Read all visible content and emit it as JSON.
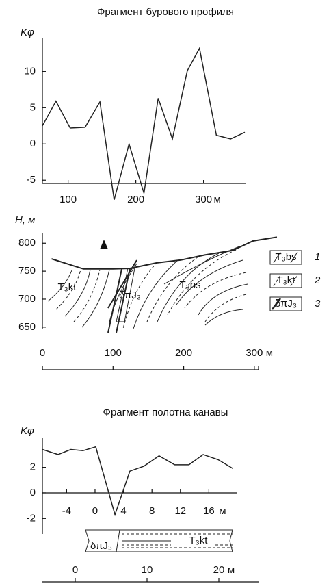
{
  "chart_data": [
    {
      "type": "line",
      "title": "Фрагмент бурового профиля",
      "ylabel": "Kφ",
      "x_unit": "м",
      "x": [
        62,
        82,
        103,
        125,
        147,
        168,
        190,
        212,
        233,
        254,
        276,
        294,
        319,
        340,
        361
      ],
      "values": [
        2.5,
        5.9,
        2.2,
        2.3,
        5.8,
        -7.7,
        0,
        -6.8,
        6.3,
        0.7,
        10.1,
        13.2,
        1.2,
        0.7,
        1.6
      ],
      "color": "#222",
      "xlim": [
        62,
        362
      ],
      "ylim": [
        -8,
        14
      ],
      "xticks": [
        100,
        200,
        300
      ],
      "yticks": [
        -5,
        0,
        5,
        10
      ]
    },
    {
      "type": "line",
      "ylabel": "H, м",
      "x_unit": "м",
      "x": [
        13,
        58,
        100,
        124,
        162,
        196,
        230,
        269,
        298,
        332
      ],
      "values": [
        772,
        754,
        754,
        755,
        765,
        770,
        779,
        787,
        804,
        811
      ],
      "color": "#222",
      "xlim": [
        0,
        335
      ],
      "ylim": [
        640,
        815
      ],
      "xticks": [
        0,
        100,
        200,
        300
      ],
      "yticks": [
        650,
        700,
        750,
        800
      ],
      "section_labels": [
        "T₃kt",
        "δπJ₃",
        "T₃bs"
      ],
      "legend": [
        {
          "label": "T₃bs",
          "num": "1"
        },
        {
          "label": "T₃kt",
          "num": "2"
        },
        {
          "label": "δπJ₃",
          "num": "3"
        }
      ]
    },
    {
      "type": "line",
      "title": "Фрагмент полотна канавы",
      "ylabel": "Kφ",
      "x_unit": "м",
      "x": [
        -7.4,
        -5.2,
        -3.4,
        -1.7,
        0.1,
        2.8,
        4.9,
        6.9,
        9.0,
        11.2,
        13.2,
        15.2,
        17.3,
        19.4
      ],
      "values": [
        3.4,
        3.0,
        3.4,
        3.3,
        3.6,
        -1.7,
        1.7,
        2.1,
        2.9,
        2.2,
        2.2,
        3.0,
        2.6,
        1.9
      ],
      "color": "#222",
      "xlim": [
        -7.4,
        20
      ],
      "ylim": [
        -3,
        3.8
      ],
      "xticks": [
        -4,
        0,
        4,
        8,
        12,
        16
      ],
      "yticks": [
        -2,
        0,
        2
      ],
      "section_labels": [
        "δπJ₃",
        "T₃kt"
      ],
      "scale": {
        "ticks": [
          0,
          10,
          20
        ],
        "unit": "м"
      }
    }
  ]
}
